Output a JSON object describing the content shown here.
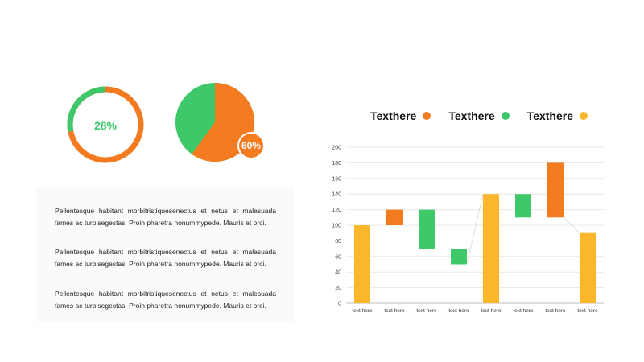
{
  "colors": {
    "orange": "#f47b20",
    "green": "#3ec86a",
    "yellow": "#fbb62b"
  },
  "donut": {
    "label": "28%",
    "value": 28
  },
  "pie": {
    "label": "60%",
    "value": 60
  },
  "paragraphs": [
    "Pellentesque habitant morbitristiquesenectus et netus et malesuada fames ac turpisegestas. Proin pharetra nonummypede.  Mauris et orci.",
    "Pellentesque habitant morbitristiquesenectus et netus et malesuada fames ac turpisegestas. Proin pharetra nonummypede.  Mauris et orci.",
    "Pellentesque habitant morbitristiquesenectus et netus et malesuada fames ac turpisegestas. Proin pharetra nonummypede.  Mauris et orci."
  ],
  "legend": [
    {
      "label": "Texthere",
      "color": "#f47b20"
    },
    {
      "label": "Texthere",
      "color": "#3ec86a"
    },
    {
      "label": "Texthere",
      "color": "#fbb62b"
    }
  ],
  "chart_data": {
    "type": "bar",
    "ylim": [
      0,
      200
    ],
    "yticks": [
      0,
      20,
      40,
      60,
      80,
      100,
      120,
      140,
      160,
      180,
      200
    ],
    "grid": true,
    "categories": [
      "text here",
      "text here",
      "text here",
      "text here",
      "text here",
      "text here",
      "text here",
      "text here"
    ],
    "bars": [
      {
        "low": 0,
        "high": 100,
        "kind": "total"
      },
      {
        "low": 100,
        "high": 120,
        "kind": "increase"
      },
      {
        "low": 70,
        "high": 120,
        "kind": "decrease"
      },
      {
        "low": 50,
        "high": 70,
        "kind": "decrease"
      },
      {
        "low": 0,
        "high": 140,
        "kind": "total"
      },
      {
        "low": 110,
        "high": 140,
        "kind": "decrease"
      },
      {
        "low": 110,
        "high": 180,
        "kind": "increase"
      },
      {
        "low": 0,
        "high": 90,
        "kind": "total"
      }
    ]
  }
}
